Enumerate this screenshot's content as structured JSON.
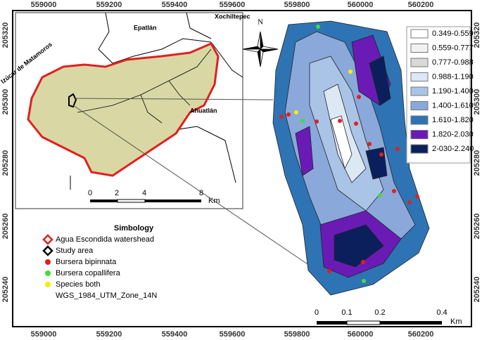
{
  "frame": {
    "top_labels": [
      "559000",
      "559200",
      "559400",
      "559600",
      "559800",
      "560000",
      "560200"
    ],
    "bottom_labels": [
      "559000",
      "559200",
      "559400",
      "559600",
      "559800",
      "560000",
      "560200"
    ],
    "left_labels": [
      "205320",
      "205300",
      "205280",
      "205260",
      "205240"
    ],
    "right_labels": [
      "205320",
      "205300",
      "205280",
      "205260",
      "205240"
    ]
  },
  "inset": {
    "places": [
      "Epatlán",
      "Xochiltepec",
      "Izúcar de Matamoros",
      "Ahuatlán"
    ],
    "scale": [
      "0",
      "2",
      "4",
      "8",
      "Km"
    ]
  },
  "north": "N",
  "legend": {
    "classes": [
      {
        "label": "0.349-0.559",
        "color": "#ffffff"
      },
      {
        "label": "0.559-0.777",
        "color": "#f2f2f2"
      },
      {
        "label": "0.777-0.988",
        "color": "#d9d9d9"
      },
      {
        "label": "0.988-1.190",
        "color": "#dde8f5"
      },
      {
        "label": "1.190-1.400",
        "color": "#a9c4e6"
      },
      {
        "label": "1.400-1.610",
        "color": "#8aa8da"
      },
      {
        "label": "1.610-1.820",
        "color": "#2e74b5"
      },
      {
        "label": "1.820-2.030",
        "color": "#6a1bb5"
      },
      {
        "label": "2-030-2.240",
        "color": "#0b1f5c"
      }
    ]
  },
  "simbology": {
    "title": "Simbology",
    "items": [
      "Agua Escondida watershead",
      "Study area",
      "Bursera bipinnata",
      "Bursera copallifera",
      "Species both",
      "WGS_1984_UTM_Zone_14N"
    ]
  },
  "main_scale": [
    "0",
    "0.1",
    "0.2",
    "0.4",
    "Km"
  ]
}
